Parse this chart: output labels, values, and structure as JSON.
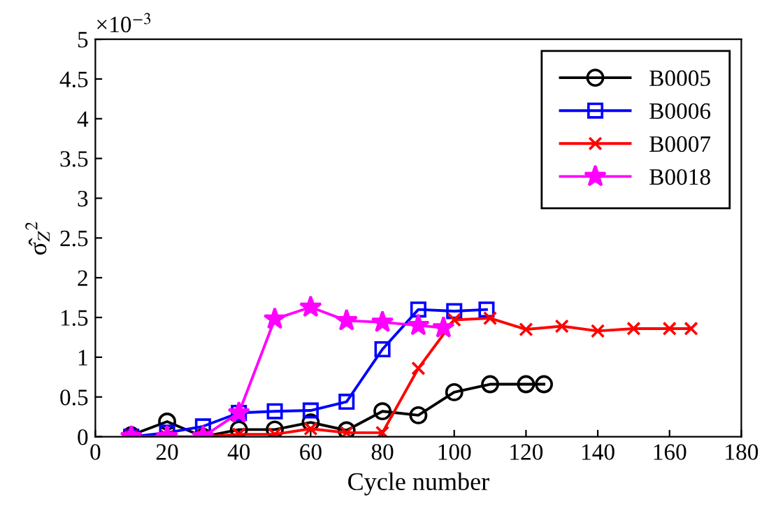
{
  "chart_data": {
    "type": "line",
    "xlabel": "Cycle number",
    "ylabel": "σ̂$_{Z}$$^{2}$",
    "annotations": [
      "×10$^{−3}$"
    ],
    "xlim": [
      0,
      180
    ],
    "xticks": [
      0,
      20,
      40,
      60,
      80,
      100,
      120,
      140,
      160,
      180
    ],
    "ylim": [
      0,
      5
    ],
    "yticks": [
      0,
      0.5,
      1,
      1.5,
      2,
      2.5,
      3,
      3.5,
      4,
      4.5,
      5
    ],
    "grid": false,
    "legend": "top right",
    "series": [
      {
        "name": "B0005",
        "color": "#000000",
        "marker": "circle",
        "x": [
          10,
          20,
          30,
          40,
          50,
          60,
          70,
          80,
          90,
          100,
          110,
          120,
          125
        ],
        "values": [
          0.02,
          0.19,
          0.0,
          0.09,
          0.09,
          0.18,
          0.08,
          0.32,
          0.27,
          0.56,
          0.66,
          0.66,
          0.66
        ]
      },
      {
        "name": "B0006",
        "color": "#0000ff",
        "marker": "square",
        "x": [
          10,
          20,
          30,
          40,
          50,
          60,
          70,
          80,
          90,
          100,
          109
        ],
        "values": [
          0.0,
          0.05,
          0.13,
          0.3,
          0.32,
          0.33,
          0.44,
          1.1,
          1.6,
          1.58,
          1.6
        ]
      },
      {
        "name": "B0007",
        "color": "#ff0000",
        "marker": "cross",
        "x": [
          10,
          20,
          30,
          40,
          50,
          60,
          70,
          80,
          90,
          100,
          110,
          120,
          130,
          140,
          150,
          160,
          166
        ],
        "values": [
          0.0,
          0.0,
          0.0,
          0.03,
          0.03,
          0.1,
          0.05,
          0.05,
          0.86,
          1.47,
          1.49,
          1.35,
          1.39,
          1.33,
          1.36,
          1.36,
          1.36
        ]
      },
      {
        "name": "B0018",
        "color": "#ff00ff",
        "marker": "star",
        "x": [
          10,
          20,
          30,
          40,
          50,
          60,
          70,
          80,
          90,
          97
        ],
        "values": [
          0.0,
          0.0,
          0.0,
          0.3,
          1.48,
          1.63,
          1.46,
          1.44,
          1.4,
          1.37
        ]
      }
    ]
  }
}
